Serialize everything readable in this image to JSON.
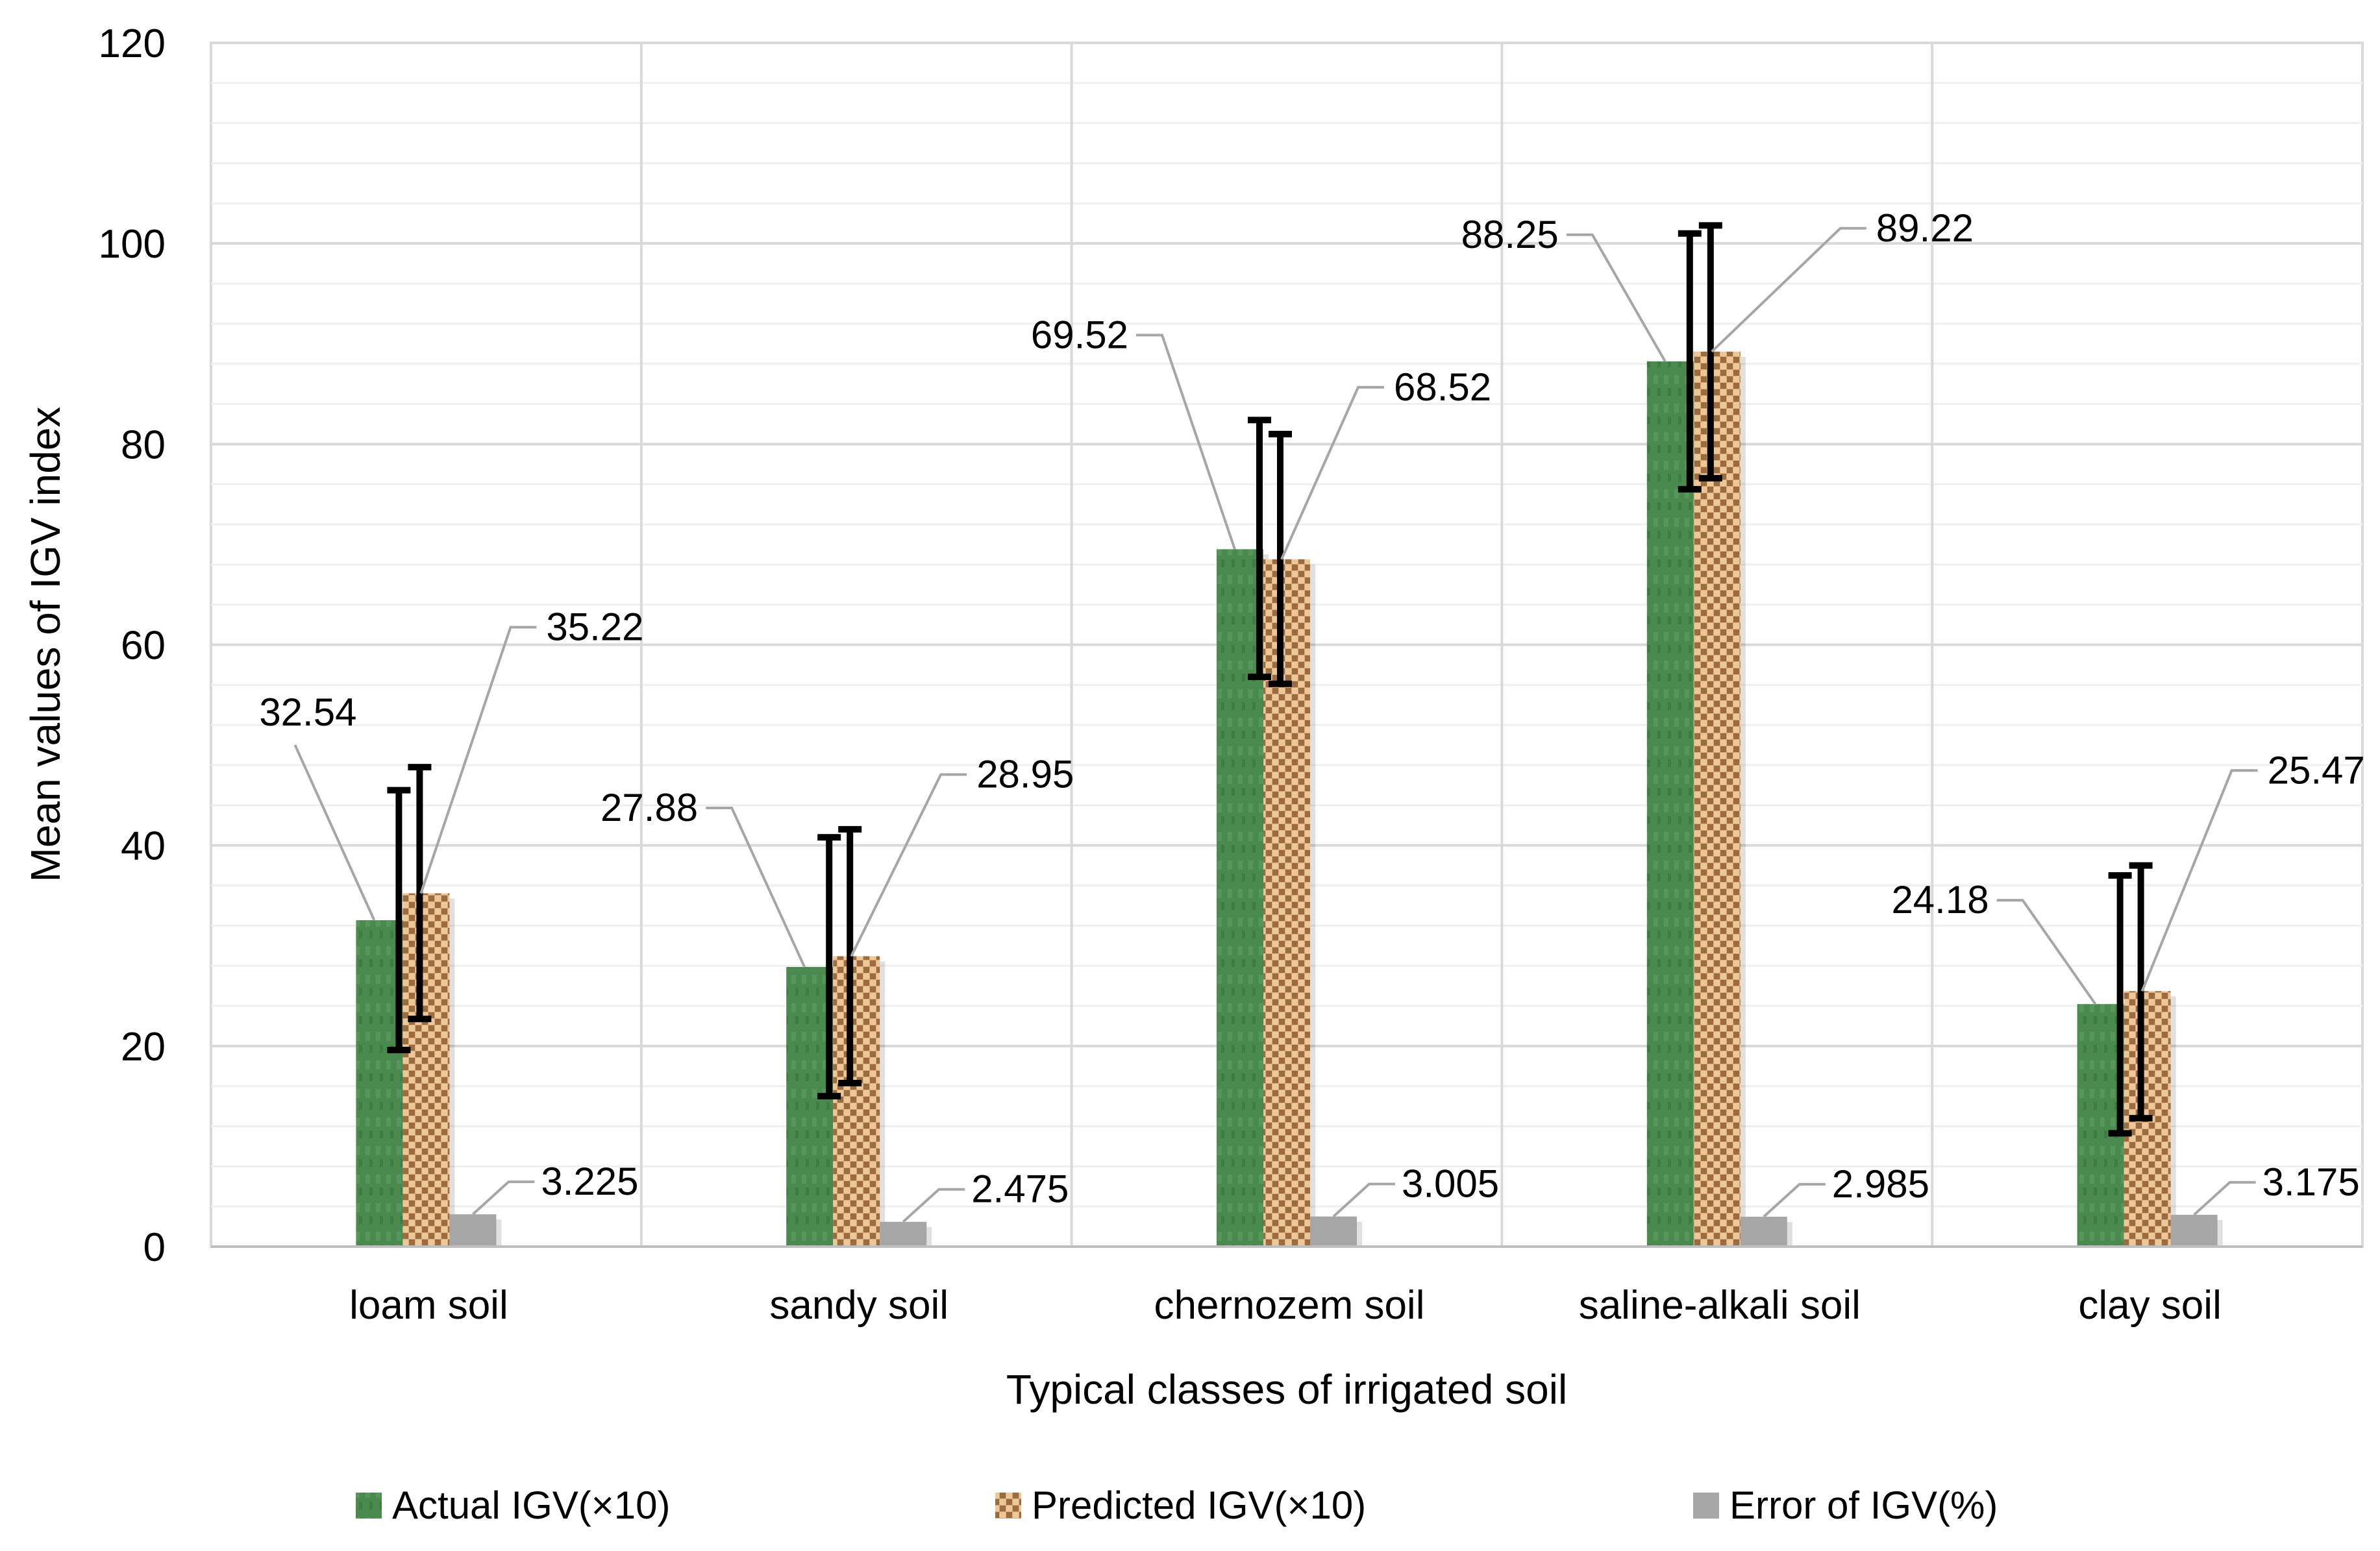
{
  "chart_data": {
    "type": "bar",
    "title": "",
    "xlabel": "Typical classes of irrigated soil",
    "ylabel": "Mean values of IGV index",
    "ylim": [
      0,
      120
    ],
    "yticks": [
      0,
      20,
      40,
      60,
      80,
      100,
      120
    ],
    "grid": true,
    "legend_position": "bottom",
    "categories": [
      "loam soil",
      "sandy soil",
      "chernozem soil",
      "saline-alkali soil",
      "clay soil"
    ],
    "series": [
      {
        "name": "Actual IGV(×10)",
        "color": "#4a8a4f",
        "values": [
          32.54,
          27.88,
          69.52,
          88.25,
          24.18
        ],
        "labels": [
          "32.54",
          "27.88",
          "69.52",
          "88.25",
          "24.18"
        ],
        "error_low": [
          19.6,
          15.0,
          56.8,
          75.5,
          11.3
        ],
        "error_high": [
          45.5,
          40.8,
          82.4,
          101.0,
          37.0
        ]
      },
      {
        "name": "Predicted IGV(×10)",
        "color": "#c8915a",
        "values": [
          35.22,
          28.95,
          68.52,
          89.22,
          25.47
        ],
        "labels": [
          "35.22",
          "28.95",
          "68.52",
          "89.22",
          "25.47"
        ],
        "error_low": [
          22.7,
          16.3,
          56.1,
          76.6,
          12.8
        ],
        "error_high": [
          47.8,
          41.6,
          81.0,
          101.8,
          38.0
        ]
      },
      {
        "name": "Error of IGV(%)",
        "color": "#a6a6a6",
        "values": [
          3.225,
          2.475,
          3.005,
          2.985,
          3.175
        ],
        "labels": [
          "3.225",
          "2.475",
          "3.005",
          "2.985",
          "3.175"
        ]
      }
    ]
  }
}
